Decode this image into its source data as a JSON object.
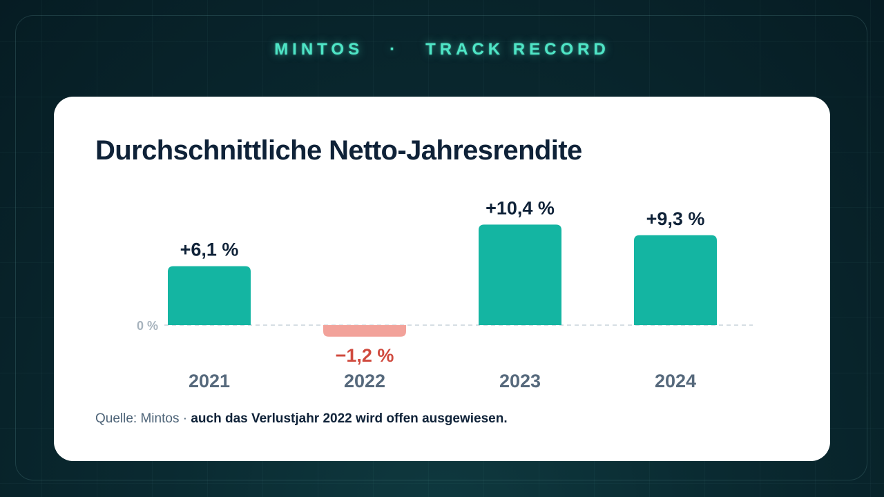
{
  "header": {
    "brand": "MINTOS",
    "separator": "·",
    "subtitle": "TRACK RECORD"
  },
  "colors": {
    "positive": "#14b5a2",
    "negative": "#f2a29a",
    "negative_label": "#d04a3e",
    "accent_glow": "#4fe5c6",
    "text_dark": "#0f2238",
    "text_muted": "#56697c"
  },
  "source": {
    "label": "Quelle: Mintos",
    "separator": " · ",
    "note": "auch das Verlustjahr 2022 wird offen ausgewiesen."
  },
  "chart_data": {
    "type": "bar",
    "title": "Durchschnittliche Netto-Jahresrendite",
    "categories": [
      "2021",
      "2022",
      "2023",
      "2024"
    ],
    "values": [
      6.1,
      -1.2,
      10.4,
      9.3
    ],
    "value_labels": [
      "+6,1 %",
      "−1,2 %",
      "+10,4 %",
      "+9,3 %"
    ],
    "baseline_label": "0 %",
    "xlabel": "",
    "ylabel": "",
    "grid": false,
    "legend": "none"
  }
}
